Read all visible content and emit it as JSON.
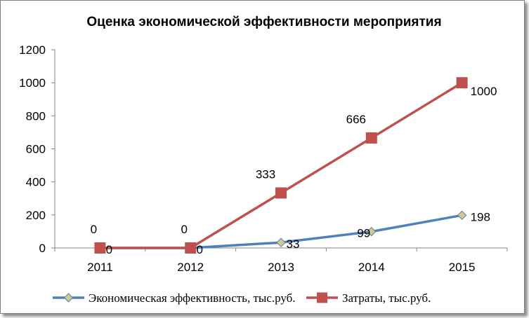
{
  "chart_data": {
    "type": "line",
    "title": "Оценка экономической эффективности мероприятия",
    "categories": [
      "2011",
      "2012",
      "2013",
      "2014",
      "2015"
    ],
    "ylim": [
      0,
      1200
    ],
    "yticks": [
      "0",
      "200",
      "400",
      "600",
      "800",
      "1000",
      "1200"
    ],
    "grid": false,
    "legend_position": "bottom",
    "series": [
      {
        "name": "Экономическая эффективность, тыс.руб.",
        "values": [
          0,
          0,
          33,
          99,
          198
        ],
        "labels": [
          "0",
          "0",
          "33",
          "99",
          "198"
        ],
        "color": "#4f81bd",
        "marker": "diamond",
        "marker_fill": "#d8c690"
      },
      {
        "name": "Затраты, тыс.руб.",
        "values": [
          0,
          0,
          333,
          666,
          1000
        ],
        "labels": [
          "0",
          "0",
          "333",
          "666",
          "1000"
        ],
        "color": "#c0504d",
        "marker": "square",
        "marker_fill": "#c0504d"
      }
    ]
  }
}
